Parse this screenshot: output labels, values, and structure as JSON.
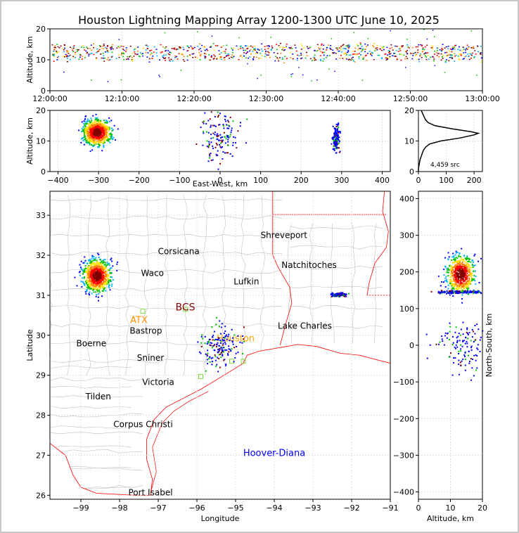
{
  "chart_data": {
    "type": "scatter",
    "title": "Houston Lightning Mapping Array 1200-1300 UTC June 10, 2025",
    "colors": {
      "sources": [
        "#0000ff",
        "#00b0ff",
        "#00c000",
        "#ffe000",
        "#ff8000",
        "#ff0000",
        "#800000"
      ],
      "map_lines": "#c0c0c0",
      "coast": "#ff0000",
      "grid": "#e0e0e0"
    },
    "time_height": {
      "xlabel": "",
      "ylabel": "Altitude, km",
      "x_ticks": [
        "12:00:00",
        "12:10:00",
        "12:20:00",
        "12:30:00",
        "12:40:00",
        "12:50:00",
        "13:00:00"
      ],
      "y_ticks": [
        0,
        10,
        20
      ],
      "ylim": [
        0,
        20
      ],
      "band_altitude_km": [
        10,
        16
      ],
      "grid": true
    },
    "ew_height": {
      "xlabel": "East-West, km",
      "ylabel": "Altitude, km",
      "x_ticks": [
        -400,
        -300,
        -200,
        -100,
        0,
        100,
        200,
        300,
        400
      ],
      "xlim": [
        -420,
        420
      ],
      "y_ticks": [
        0,
        10,
        20
      ],
      "ylim": [
        0,
        20
      ],
      "clusters": [
        {
          "x": -305,
          "z": 13,
          "spread_x": 25,
          "spread_z": 3,
          "dense": true
        },
        {
          "x": 0,
          "z": 12,
          "spread_x": 30,
          "spread_z": 6,
          "dense": false
        },
        {
          "x": 285,
          "z": 11,
          "spread_x": 6,
          "spread_z": 3,
          "dense": false
        }
      ]
    },
    "histogram": {
      "x_ticks": [
        0,
        100,
        200
      ],
      "xlim": [
        0,
        230
      ],
      "y_ticks": [
        0,
        10,
        20
      ],
      "ylim": [
        0,
        20
      ],
      "annotation": "4,459 src",
      "profile": [
        [
          0,
          0
        ],
        [
          0,
          1
        ],
        [
          2,
          2
        ],
        [
          4,
          3
        ],
        [
          6,
          4
        ],
        [
          10,
          5
        ],
        [
          14,
          6
        ],
        [
          18,
          7
        ],
        [
          26,
          8
        ],
        [
          40,
          9
        ],
        [
          80,
          10
        ],
        [
          150,
          11
        ],
        [
          200,
          12
        ],
        [
          215,
          12.5
        ],
        [
          190,
          13
        ],
        [
          120,
          14
        ],
        [
          60,
          15
        ],
        [
          35,
          16
        ],
        [
          25,
          17
        ],
        [
          20,
          18
        ],
        [
          15,
          19
        ],
        [
          10,
          20
        ]
      ]
    },
    "plan_view": {
      "xlabel": "Longitude",
      "ylabel": "Latitude",
      "x_ticks": [
        -99,
        -98,
        -97,
        -96,
        -95,
        -94,
        -93,
        -92,
        -91
      ],
      "xlim": [
        -99.8,
        -91
      ],
      "y_ticks": [
        26,
        27,
        28,
        29,
        30,
        31,
        32,
        33
      ],
      "ylim": [
        25.9,
        33.6
      ],
      "cities": [
        {
          "name": "Shreveport",
          "lon": -93.75,
          "lat": 32.5
        },
        {
          "name": "Corsicana",
          "lon": -96.47,
          "lat": 32.1
        },
        {
          "name": "Natchitoches",
          "lon": -93.1,
          "lat": 31.75
        },
        {
          "name": "Waco",
          "lon": -97.15,
          "lat": 31.55
        },
        {
          "name": "Lufkin",
          "lon": -94.72,
          "lat": 31.34
        },
        {
          "name": "Bastrop",
          "lon": -97.32,
          "lat": 30.11
        },
        {
          "name": "Lake Charles",
          "lon": -93.21,
          "lat": 30.23
        },
        {
          "name": "Boerne",
          "lon": -98.73,
          "lat": 29.79
        },
        {
          "name": "Sniner",
          "lon": -97.2,
          "lat": 29.43
        },
        {
          "name": "Victoria",
          "lon": -97.0,
          "lat": 28.83
        },
        {
          "name": "Tilden",
          "lon": -98.55,
          "lat": 28.47
        },
        {
          "name": "Corpus Christi",
          "lon": -97.39,
          "lat": 27.77
        },
        {
          "name": "Port Isabel",
          "lon": -97.2,
          "lat": 26.07
        }
      ],
      "labels": [
        {
          "name": "BCS",
          "lon": -96.3,
          "lat": 30.62,
          "color": "#800000"
        },
        {
          "name": "ATX",
          "lon": -97.5,
          "lat": 30.3,
          "color": "#ff8c00"
        },
        {
          "name": "Houston",
          "lon": -95.0,
          "lat": 29.85,
          "color": "#ffa500"
        },
        {
          "name": "Hoover-Diana",
          "lon": -94.0,
          "lat": 26.98,
          "color": "#0000ff"
        }
      ],
      "source_clusters": [
        {
          "lon": -98.6,
          "lat": 31.5,
          "spread_lon": 0.25,
          "spread_lat": 0.28,
          "dense": true
        },
        {
          "lon": -95.4,
          "lat": 29.75,
          "spread_lon": 0.35,
          "spread_lat": 0.35,
          "dense": false
        },
        {
          "lon": -92.35,
          "lat": 31.03,
          "spread_lon": 0.12,
          "spread_lat": 0.03,
          "dense": false
        }
      ]
    },
    "ns_height": {
      "xlabel": "Altitude, km",
      "ylabel": "North-South, km",
      "x_ticks": [
        0,
        10,
        20
      ],
      "xlim": [
        0,
        20
      ],
      "y_ticks": [
        -400,
        -300,
        -200,
        -100,
        0,
        100,
        200,
        300,
        400
      ],
      "ylim": [
        -420,
        420
      ],
      "clusters": [
        {
          "z": 13,
          "y": 195,
          "spread_z": 3,
          "spread_y": 35,
          "dense": true
        },
        {
          "z": 13,
          "y": 147,
          "spread_z": 5,
          "spread_y": 3,
          "dense": false
        },
        {
          "z": 14,
          "y": 0,
          "spread_z": 6,
          "spread_y": 45,
          "dense": false
        }
      ]
    }
  }
}
